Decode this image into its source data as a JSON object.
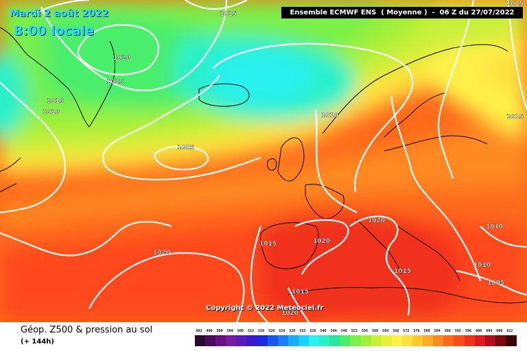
{
  "header": {
    "date": "Mardi 2 août 2022",
    "time": "8:00 locale",
    "run_info": "Ensemble ECMWF ENS  ( Moyenne )  -  06 Z du 27/07/2022"
  },
  "copyright": "Copyright © 2022 Meteociel.fr",
  "footer": {
    "parameter": "Géop. Z500 & pression au sol",
    "lead_time": "(+ 144h)"
  },
  "colors": {
    "map_background": "#ff6a1a",
    "isobar": "#ffffff",
    "coastline": "#000000"
  },
  "isobar_labels": [
    "1015",
    "1020",
    "1015",
    "1010",
    "1010",
    "1005",
    "1010",
    "1015",
    "1020",
    "1015",
    "1020",
    "1010",
    "1020",
    "1015",
    "1010",
    "1005",
    "1015",
    "1020",
    "1015"
  ],
  "scale": {
    "values": [
      "492",
      "496",
      "500",
      "504",
      "508",
      "512",
      "516",
      "520",
      "524",
      "528",
      "532",
      "536",
      "540",
      "544",
      "548",
      "552",
      "556",
      "560",
      "564",
      "568",
      "572",
      "576",
      "580",
      "584",
      "588",
      "592",
      "596",
      "600",
      "604",
      "608",
      "612"
    ],
    "colors": [
      "#2b0a2e",
      "#4a0a5a",
      "#6a0f80",
      "#7a1aa0",
      "#5a1ab8",
      "#3a1ad0",
      "#1a2ae0",
      "#1a55f0",
      "#1a80ff",
      "#1aaaff",
      "#1ad0ff",
      "#2af0f0",
      "#2af0c8",
      "#2ae8a0",
      "#4aee6a",
      "#7af04a",
      "#a0f03a",
      "#c8f03a",
      "#e8f03a",
      "#fff04a",
      "#ffe040",
      "#ffc830",
      "#ffaa28",
      "#ff8a20",
      "#ff6a1a",
      "#ff4a1a",
      "#f0301a",
      "#e01a20",
      "#b0101a",
      "#7a0a10",
      "#3a0508"
    ]
  }
}
